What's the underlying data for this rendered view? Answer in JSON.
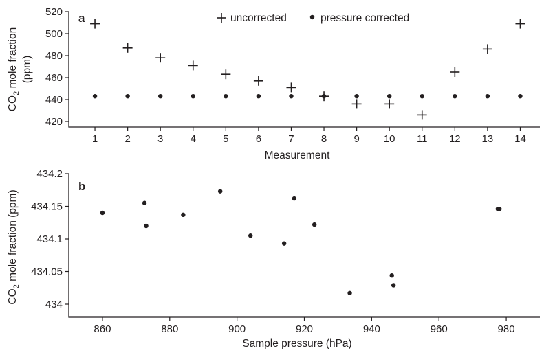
{
  "chart_data": [
    {
      "type": "scatter",
      "panel_label": "a",
      "xlabel": "Measurement",
      "ylabel": "CO2 mole fraction (ppm)",
      "ylabel_parts": {
        "line1_pre": "CO",
        "line1_sub": "2",
        "line1_post": " mole fraction",
        "line2": "(ppm)"
      },
      "xlim": [
        0.2,
        14.6
      ],
      "ylim": [
        415,
        520
      ],
      "x_ticks": [
        1,
        2,
        3,
        4,
        5,
        6,
        7,
        8,
        9,
        10,
        11,
        12,
        13,
        14
      ],
      "y_ticks": [
        420,
        440,
        460,
        480,
        500,
        520
      ],
      "legend_position": "top-center",
      "series": [
        {
          "name": "uncorrected",
          "marker": "plus",
          "x": [
            1,
            2,
            3,
            4,
            5,
            6,
            7,
            8,
            9,
            10,
            11,
            12,
            13,
            14
          ],
          "y": [
            509,
            487,
            478,
            471,
            463,
            457,
            451,
            443,
            436,
            436,
            426,
            465,
            486,
            509
          ]
        },
        {
          "name": "pressure corrected",
          "marker": "dot",
          "x": [
            1,
            2,
            3,
            4,
            5,
            6,
            7,
            8,
            9,
            10,
            11,
            12,
            13,
            14
          ],
          "y": [
            443,
            443,
            443,
            443,
            443,
            443,
            443,
            443,
            443,
            443,
            443,
            443,
            443,
            443
          ]
        }
      ]
    },
    {
      "type": "scatter",
      "panel_label": "b",
      "xlabel": "Sample pressure (hPa)",
      "ylabel": "CO2 mole fraction (ppm)",
      "ylabel_parts": {
        "line1_pre": "CO",
        "line1_sub": "2",
        "line1_post": " mole fraction (ppm)"
      },
      "xlim": [
        850,
        990
      ],
      "ylim": [
        433.98,
        434.2
      ],
      "x_ticks": [
        860,
        880,
        900,
        920,
        940,
        960,
        980
      ],
      "y_ticks": [
        434,
        434.05,
        434.1,
        434.15,
        434.2
      ],
      "y_tick_labels": [
        "434",
        "434.05",
        "434.1",
        "434.15",
        "434.2"
      ],
      "series": [
        {
          "marker": "dot",
          "x": [
            860,
            872.5,
            873,
            884,
            895,
            904,
            914,
            917,
            923,
            933.5,
            946,
            946.5,
            977.5,
            978
          ],
          "y": [
            434.14,
            434.155,
            434.12,
            434.137,
            434.173,
            434.105,
            434.093,
            434.162,
            434.122,
            434.017,
            434.044,
            434.029,
            434.146,
            434.146
          ]
        }
      ]
    }
  ]
}
